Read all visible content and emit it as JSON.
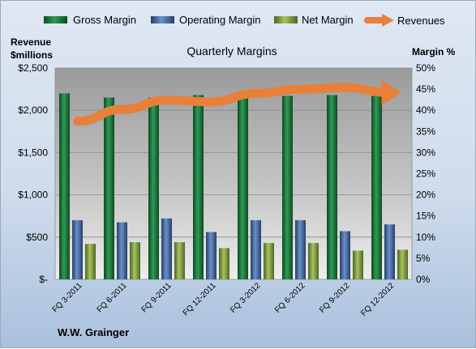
{
  "chart_data": {
    "type": "bar",
    "title": "Quarterly Margins",
    "left_axis_title": [
      "Revenue",
      "$millions"
    ],
    "right_axis_title": "Margin %",
    "footer": "W.W. Grainger",
    "categories": [
      "FQ 3-2011",
      "FQ 6-2011",
      "FQ 9-2011",
      "FQ 12-2011",
      "FQ 3-2012",
      "FQ 6-2012",
      "FQ 9-2012",
      "FQ 12-2012"
    ],
    "left_ticks": [
      "$-",
      "$500",
      "$1,000",
      "$1,500",
      "$2,000",
      "$2,500"
    ],
    "right_ticks": [
      "0%",
      "5%",
      "10%",
      "15%",
      "20%",
      "25%",
      "30%",
      "35%",
      "40%",
      "45%",
      "50%"
    ],
    "ylim_left": [
      0,
      2500
    ],
    "ylim_right": [
      0,
      50
    ],
    "legend_position": "top",
    "grid": true,
    "series": [
      {
        "name": "Gross Margin",
        "axis": "right",
        "unit": "%",
        "color": "#1e7a3e",
        "values": [
          44,
          43,
          43,
          43.6,
          44.4,
          43.4,
          43.6,
          43.4
        ]
      },
      {
        "name": "Operating Margin",
        "axis": "right",
        "unit": "%",
        "color": "#4670b0",
        "values": [
          14,
          13.5,
          14.4,
          11.2,
          14,
          14,
          11.4,
          13
        ]
      },
      {
        "name": "Net Margin",
        "axis": "right",
        "unit": "%",
        "color": "#8aa84a",
        "values": [
          8.4,
          8.8,
          8.8,
          7.4,
          8.6,
          8.6,
          6.8,
          7
        ]
      },
      {
        "name": "Revenues",
        "axis": "left",
        "unit": "$millions",
        "type": "line",
        "color": "#e8803a",
        "values": [
          1870,
          2010,
          2120,
          2100,
          2200,
          2250,
          2270,
          2210
        ]
      }
    ]
  }
}
